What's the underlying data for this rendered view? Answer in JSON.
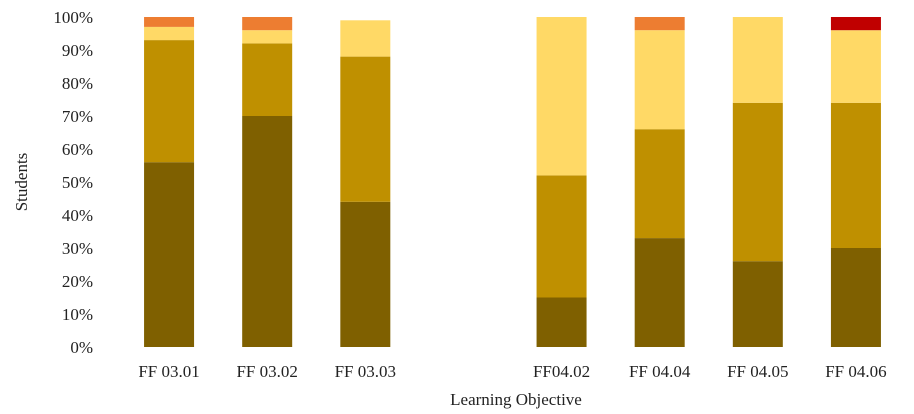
{
  "chart_data": {
    "type": "bar",
    "stacked": true,
    "xlabel": "Learning Objective",
    "ylabel": "Students",
    "ylim": [
      0,
      100
    ],
    "yticks": [
      0,
      10,
      20,
      30,
      40,
      50,
      60,
      70,
      80,
      90,
      100
    ],
    "ytick_labels": [
      "0%",
      "10%",
      "20%",
      "30%",
      "40%",
      "50%",
      "60%",
      "70%",
      "80%",
      "90%",
      "100%"
    ],
    "grid": false,
    "legend": "none",
    "categories": [
      "FF 03.01",
      "FF 03.02",
      "FF 03.03",
      "",
      "FF04.02",
      "FF 04.04",
      "FF 04.05",
      "FF 04.06"
    ],
    "series": [
      {
        "color": "#7f6000",
        "values": [
          56,
          70,
          44,
          null,
          15,
          33,
          26,
          30
        ]
      },
      {
        "color": "#bf9000",
        "values": [
          37,
          22,
          44,
          null,
          37,
          33,
          48,
          44
        ]
      },
      {
        "color": "#ffd966",
        "values": [
          4,
          4,
          11,
          null,
          48,
          30,
          26,
          22
        ]
      },
      {
        "color": "#ed7d31",
        "values": [
          3,
          4,
          0,
          null,
          0,
          4,
          0,
          0
        ]
      },
      {
        "color": "#c00000",
        "values": [
          0,
          0,
          0,
          null,
          0,
          0,
          0,
          4
        ]
      }
    ]
  }
}
